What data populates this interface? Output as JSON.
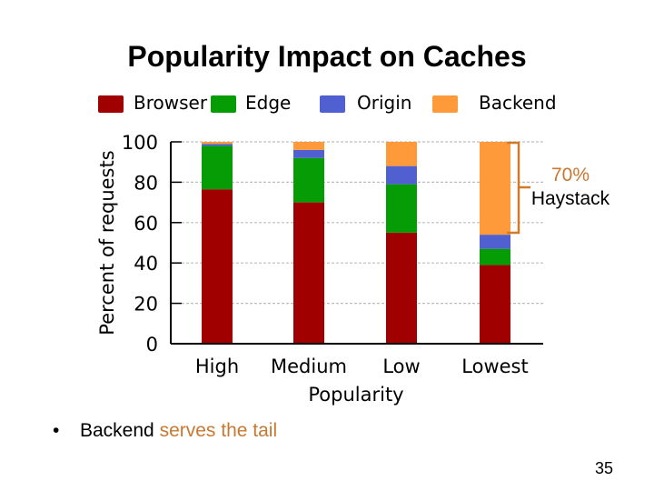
{
  "slide": {
    "title": "Popularity Impact on Caches",
    "bullet": {
      "marker": "•",
      "text_plain": "Backend ",
      "text_accent": "serves the tail"
    },
    "annotation": {
      "percent": "70%",
      "label": "Haystack"
    },
    "page_number": "35",
    "colors": {
      "accent": "#c87832",
      "bracket": "#d07a2a"
    }
  },
  "chart_data": {
    "type": "bar",
    "stacked": true,
    "title": "",
    "xlabel": "Popularity",
    "ylabel": "Percent of requests",
    "ylim": [
      0,
      100
    ],
    "yticks": [
      0,
      20,
      40,
      60,
      80,
      100
    ],
    "grid": true,
    "legend_position": "top",
    "categories": [
      "High",
      "Medium",
      "Low",
      "Lowest"
    ],
    "series": [
      {
        "name": "Browser",
        "color": "#a00000",
        "values": [
          76.5,
          70,
          55,
          39
        ]
      },
      {
        "name": "Edge",
        "color": "#069c06",
        "values": [
          21.5,
          22,
          24,
          8
        ]
      },
      {
        "name": "Origin",
        "color": "#5060d0",
        "values": [
          1,
          4,
          9,
          7
        ]
      },
      {
        "name": "Backend",
        "color": "#ff9a3a",
        "values": [
          1,
          4,
          12,
          46
        ]
      }
    ]
  }
}
